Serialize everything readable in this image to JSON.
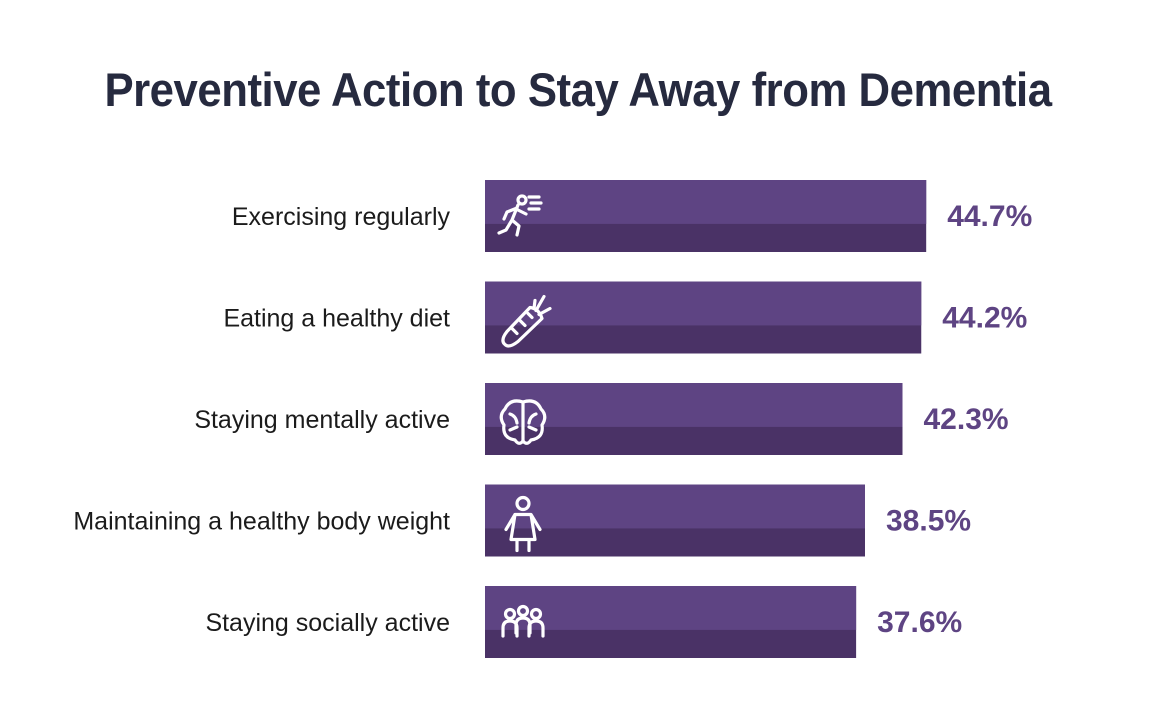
{
  "chart_data": {
    "type": "bar",
    "orientation": "horizontal",
    "title": "Preventive Action to Stay Away from Dementia",
    "xlabel": "",
    "ylabel": "",
    "categories": [
      "Exercising regularly",
      "Eating a healthy diet",
      "Staying mentally active",
      "Maintaining a healthy body weight",
      "Staying socially active"
    ],
    "values": [
      44.7,
      44.2,
      42.3,
      38.5,
      37.6
    ],
    "value_labels": [
      "44.7%",
      "44.2%",
      "42.3%",
      "38.5%",
      "37.6%"
    ],
    "icons": [
      "running-person-icon",
      "carrot-icon",
      "brain-icon",
      "person-icon",
      "group-icon"
    ],
    "grid": false,
    "legend": "none"
  },
  "colors": {
    "bar_top": "#5e4483",
    "bar_bottom": "#4a3266",
    "value_text": "#5e4483",
    "title_text": "#262a3f"
  }
}
